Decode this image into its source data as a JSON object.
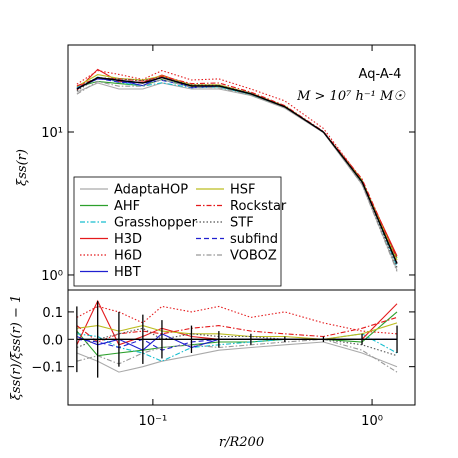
{
  "chart_data": [
    {
      "type": "line",
      "log_x": true,
      "log_y": true,
      "ylabel": "ξss(r)",
      "annotations": [
        "Aq-A-4",
        "M > 10⁷ h⁻¹ M☉"
      ],
      "legend": "lower left",
      "xlim": [
        0.041,
        1.57
      ],
      "ylim": [
        0.785,
        40.6
      ],
      "yticks": [
        {
          "value": 1,
          "label": "10⁰"
        },
        {
          "value": 10,
          "label": "10¹"
        }
      ],
      "x": [
        0.045,
        0.056,
        0.07,
        0.09,
        0.11,
        0.15,
        0.2,
        0.28,
        0.4,
        0.6,
        0.9,
        1.3
      ],
      "mean": {
        "color": "#000000",
        "values": [
          20,
          24,
          23,
          22,
          24,
          21,
          21,
          18.5,
          15,
          10,
          4.5,
          1.2
        ]
      },
      "series": [
        {
          "name": "AdaptaHOP",
          "color": "#aaaaaa",
          "dash": "solid",
          "values": [
            19,
            22,
            20,
            20,
            22,
            20,
            20,
            18,
            14.7,
            9.9,
            4.3,
            1.08
          ]
        },
        {
          "name": "AHF",
          "color": "#2ca02c",
          "dash": "solid",
          "values": [
            20.6,
            22.6,
            21.8,
            21.1,
            23.3,
            20.6,
            20.8,
            18.3,
            15,
            10,
            4.45,
            1.32
          ]
        },
        {
          "name": "Grasshopper",
          "color": "#17becf",
          "dash": "dashdot",
          "values": [
            20.4,
            24.2,
            22.3,
            20.9,
            22.1,
            20.4,
            20.6,
            18.3,
            15,
            10,
            4.6,
            1.14
          ]
        },
        {
          "name": "H3D",
          "color": "#e41a1c",
          "dash": "solid",
          "values": [
            19.6,
            27.4,
            22.5,
            22.2,
            25,
            21.2,
            21,
            18.5,
            15,
            10,
            4.5,
            1.36
          ]
        },
        {
          "name": "H6D",
          "color": "#e41a1c",
          "dash": "dotted",
          "values": [
            21.6,
            26.9,
            25.3,
            23.3,
            26.9,
            23.1,
            23.5,
            20,
            16.5,
            10.6,
            4.6,
            1.22
          ]
        },
        {
          "name": "HBT",
          "color": "#2020d0",
          "dash": "solid",
          "values": [
            20.2,
            23.5,
            23,
            21.1,
            24.5,
            20.4,
            21,
            18.5,
            15,
            10,
            4.5,
            1.2
          ]
        },
        {
          "name": "HSF",
          "color": "#bcbd22",
          "dash": "solid",
          "values": [
            20.8,
            25.2,
            23.7,
            23.1,
            24.7,
            21.4,
            21.4,
            18.7,
            15.2,
            10,
            4.6,
            1.27
          ]
        },
        {
          "name": "Rockstar",
          "color": "#e41a1c",
          "dash": "dashdot",
          "values": [
            21,
            23.8,
            23.5,
            22.7,
            24.5,
            21.8,
            22,
            19,
            15.3,
            10.1,
            4.7,
            1.3
          ]
        },
        {
          "name": "STF",
          "color": "#555555",
          "dash": "dotted",
          "values": [
            19.4,
            24,
            23.5,
            22.9,
            24,
            21.4,
            21.2,
            18.7,
            15,
            10,
            4.4,
            1.13
          ]
        },
        {
          "name": "subfind",
          "color": "#2020d0",
          "dash": "dashed",
          "values": [
            20,
            23.8,
            22.3,
            22,
            23,
            20.8,
            21,
            18.5,
            15,
            10,
            4.5,
            1.2
          ]
        },
        {
          "name": "VOBOZ",
          "color": "#999999",
          "dash": "dashdot",
          "values": [
            18.4,
            22.6,
            20.9,
            20.9,
            23.3,
            20.6,
            20.4,
            18.1,
            14.9,
            10,
            4.3,
            1.06
          ]
        }
      ]
    },
    {
      "type": "line",
      "log_x": true,
      "log_y": false,
      "xlabel": "r/R200",
      "ylabel": "ξss(r)/ξ̄ss(r) − 1",
      "xlim": [
        0.041,
        1.57
      ],
      "ylim": [
        -0.24,
        0.18
      ],
      "xticks": [
        {
          "value": 0.1,
          "label": "10⁻¹"
        },
        {
          "value": 1,
          "label": "10⁰"
        }
      ],
      "yticks": [
        {
          "value": -0.1,
          "label": "−0.1"
        },
        {
          "value": 0,
          "label": "0.0"
        },
        0.1
      ],
      "x": [
        0.045,
        0.056,
        0.07,
        0.09,
        0.11,
        0.15,
        0.2,
        0.28,
        0.4,
        0.6,
        0.9,
        1.3
      ],
      "mean": {
        "color": "#000000",
        "values": [
          0,
          0,
          0,
          0,
          0,
          0,
          0,
          0,
          0,
          0,
          0,
          0
        ],
        "errors": [
          0.12,
          0.14,
          0.1,
          0.09,
          0.07,
          0.05,
          0.03,
          0.02,
          0.01,
          0.01,
          0.02,
          0.05
        ]
      },
      "series": [
        {
          "color": "#aaaaaa",
          "dash": "solid",
          "values": [
            -0.05,
            -0.08,
            -0.12,
            -0.1,
            -0.08,
            -0.06,
            -0.04,
            -0.03,
            -0.02,
            -0.01,
            -0.05,
            -0.1
          ]
        },
        {
          "color": "#2ca02c",
          "dash": "solid",
          "values": [
            0.03,
            -0.06,
            -0.05,
            -0.04,
            -0.03,
            -0.02,
            -0.01,
            -0.01,
            0,
            0,
            -0.01,
            0.1
          ]
        },
        {
          "color": "#17becf",
          "dash": "dashdot",
          "values": [
            0.02,
            0.01,
            -0.03,
            -0.05,
            -0.08,
            -0.03,
            -0.02,
            -0.01,
            0,
            0,
            0.02,
            -0.05
          ]
        },
        {
          "color": "#e41a1c",
          "dash": "solid",
          "values": [
            -0.02,
            0.14,
            -0.02,
            0.01,
            0.04,
            0.01,
            0,
            0,
            0,
            0,
            0,
            0.13
          ]
        },
        {
          "color": "#e41a1c",
          "dash": "dotted",
          "values": [
            0.08,
            0.12,
            0.1,
            0.06,
            0.12,
            0.1,
            0.12,
            0.08,
            0.1,
            0.06,
            0.03,
            0.02
          ]
        },
        {
          "color": "#2020d0",
          "dash": "solid",
          "values": [
            0.01,
            -0.02,
            0,
            -0.04,
            0.02,
            -0.03,
            0,
            0,
            0,
            0,
            0,
            0
          ]
        },
        {
          "color": "#bcbd22",
          "dash": "solid",
          "values": [
            0.04,
            0.05,
            0.03,
            0.05,
            0.03,
            0.02,
            0.02,
            0.01,
            0.01,
            0,
            0.02,
            0.06
          ]
        },
        {
          "color": "#e41a1c",
          "dash": "dashdot",
          "values": [
            0.05,
            -0.01,
            0.02,
            0.03,
            0.02,
            0.04,
            0.05,
            0.03,
            0.02,
            0.01,
            0.04,
            0.08
          ]
        },
        {
          "color": "#555555",
          "dash": "dotted",
          "values": [
            -0.03,
            0,
            0.02,
            0.04,
            0,
            0.02,
            0.01,
            0.01,
            0,
            0,
            -0.02,
            -0.06
          ]
        },
        {
          "color": "#2020d0",
          "dash": "dashed",
          "values": [
            0,
            -0.01,
            -0.03,
            0,
            -0.04,
            -0.01,
            0,
            0,
            0,
            0,
            0,
            0
          ]
        },
        {
          "color": "#999999",
          "dash": "dashdot",
          "values": [
            -0.08,
            -0.06,
            -0.09,
            -0.05,
            -0.03,
            -0.02,
            -0.03,
            -0.02,
            -0.01,
            0,
            -0.04,
            -0.12
          ]
        }
      ]
    }
  ]
}
